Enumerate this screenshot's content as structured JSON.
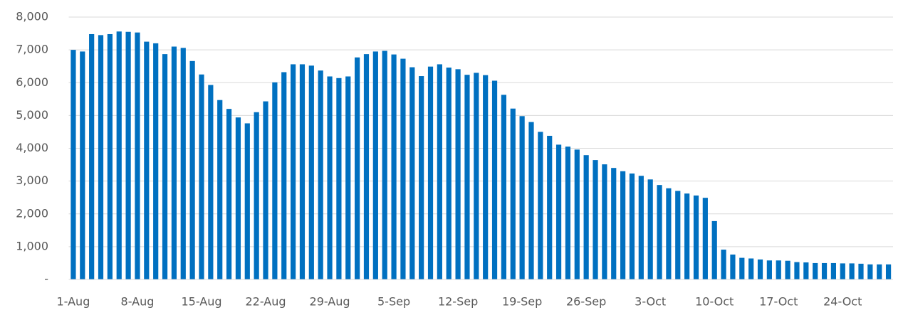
{
  "chart_data": {
    "type": "bar",
    "categories": [
      "1-Aug",
      null,
      null,
      null,
      null,
      null,
      null,
      "8-Aug",
      null,
      null,
      null,
      null,
      null,
      null,
      "15-Aug",
      null,
      null,
      null,
      null,
      null,
      null,
      "22-Aug",
      null,
      null,
      null,
      null,
      null,
      null,
      "29-Aug",
      null,
      null,
      null,
      null,
      null,
      null,
      "5-Sep",
      null,
      null,
      null,
      null,
      null,
      null,
      "12-Sep",
      null,
      null,
      null,
      null,
      null,
      null,
      "19-Sep",
      null,
      null,
      null,
      null,
      null,
      null,
      "26-Sep",
      null,
      null,
      null,
      null,
      null,
      null,
      "3-Oct",
      null,
      null,
      null,
      null,
      null,
      null,
      "10-Oct",
      null,
      null,
      null,
      null,
      null,
      null,
      "17-Oct",
      null,
      null,
      null,
      null,
      null,
      null,
      "24-Oct",
      null,
      null,
      null,
      null,
      null
    ],
    "values": [
      7000,
      6950,
      7480,
      7450,
      7480,
      7560,
      7550,
      7530,
      7250,
      7200,
      6870,
      7100,
      7060,
      6660,
      6250,
      5930,
      5470,
      5200,
      4940,
      4760,
      5100,
      5430,
      6010,
      6320,
      6560,
      6560,
      6520,
      6370,
      6190,
      6140,
      6190,
      6770,
      6870,
      6950,
      6970,
      6860,
      6730,
      6470,
      6200,
      6490,
      6560,
      6460,
      6410,
      6240,
      6300,
      6230,
      6060,
      5630,
      5210,
      4980,
      4800,
      4500,
      4380,
      4110,
      4050,
      3960,
      3790,
      3640,
      3510,
      3400,
      3300,
      3230,
      3160,
      3050,
      2880,
      2780,
      2700,
      2620,
      2560,
      2490,
      1780,
      910,
      760,
      660,
      640,
      610,
      580,
      580,
      570,
      530,
      520,
      500,
      500,
      500,
      490,
      490,
      480,
      460,
      460,
      460
    ],
    "color": "#0070c0",
    "ylim": [
      0,
      8000
    ],
    "yticks": [
      {
        "value": 0,
        "label": "-"
      },
      {
        "value": 1000,
        "label": "1,000"
      },
      {
        "value": 2000,
        "label": "2,000"
      },
      {
        "value": 3000,
        "label": "3,000"
      },
      {
        "value": 4000,
        "label": "4,000"
      },
      {
        "value": 5000,
        "label": "5,000"
      },
      {
        "value": 6000,
        "label": "6,000"
      },
      {
        "value": 7000,
        "label": "7,000"
      },
      {
        "value": 8000,
        "label": "8,000"
      }
    ],
    "grid": true
  }
}
